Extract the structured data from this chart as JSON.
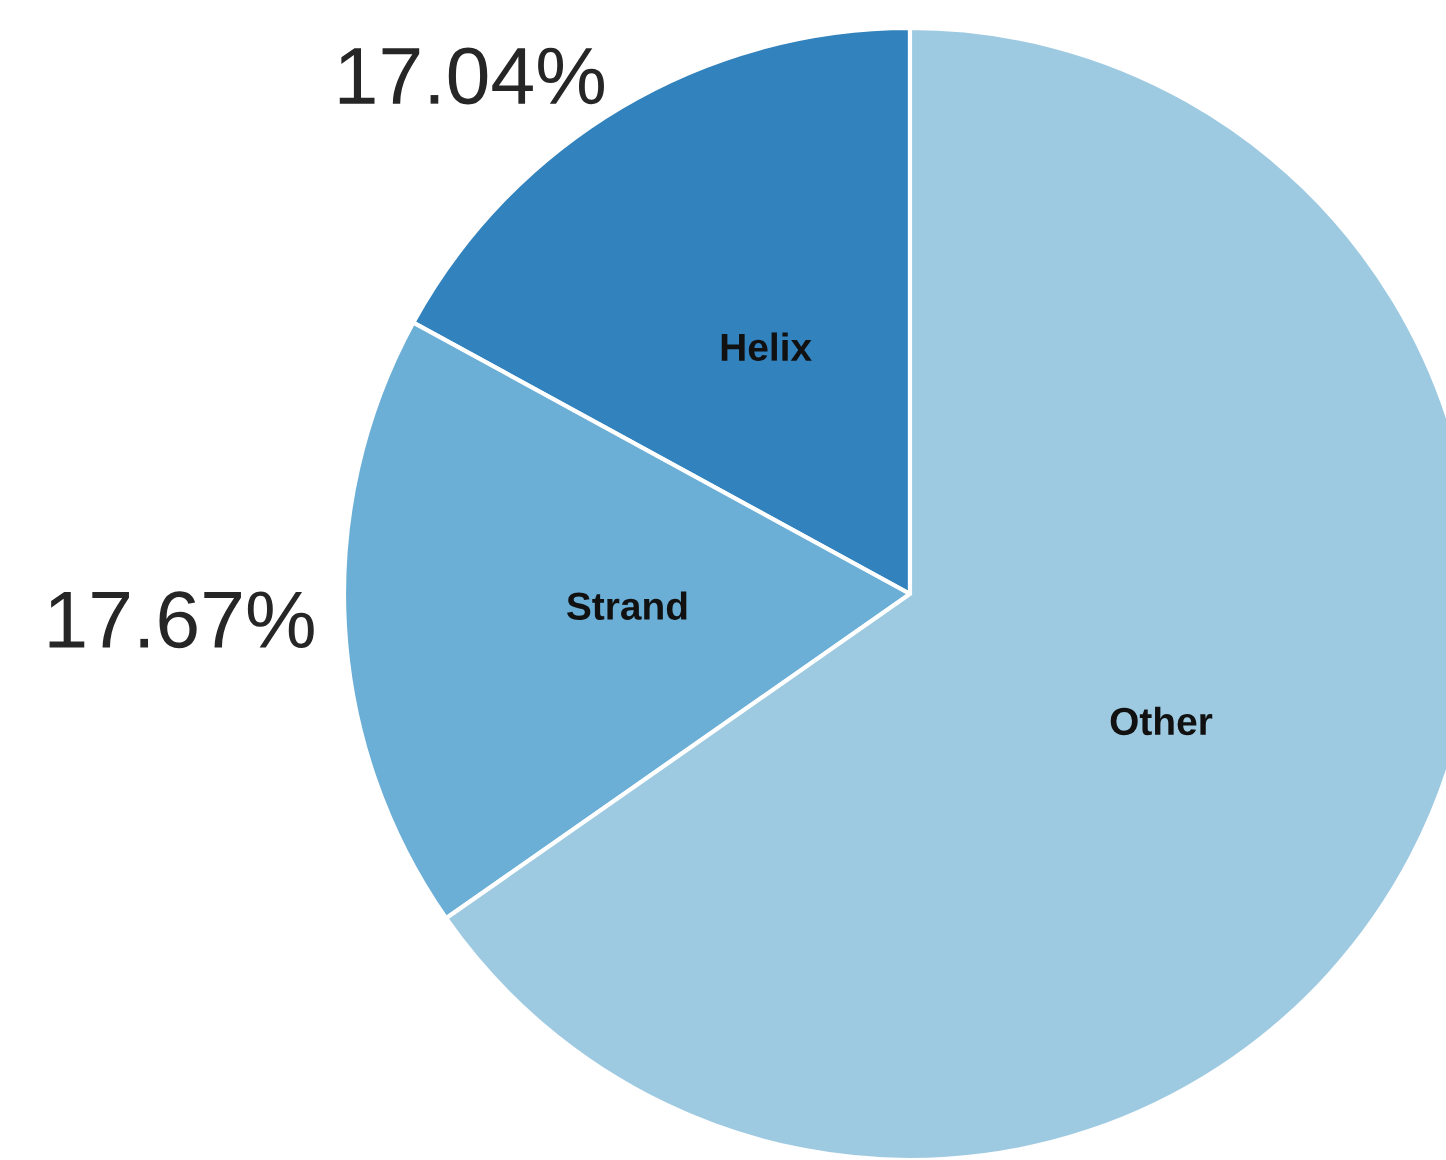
{
  "chart_data": {
    "type": "pie",
    "categories": [
      "Helix",
      "Strand",
      "Other"
    ],
    "values": [
      17.04,
      17.67,
      65.29
    ],
    "value_labels": [
      "17.04%",
      "17.67%",
      null
    ],
    "colors": [
      "#3182bd",
      "#6baed6",
      "#9ecae1"
    ],
    "legend": false
  }
}
